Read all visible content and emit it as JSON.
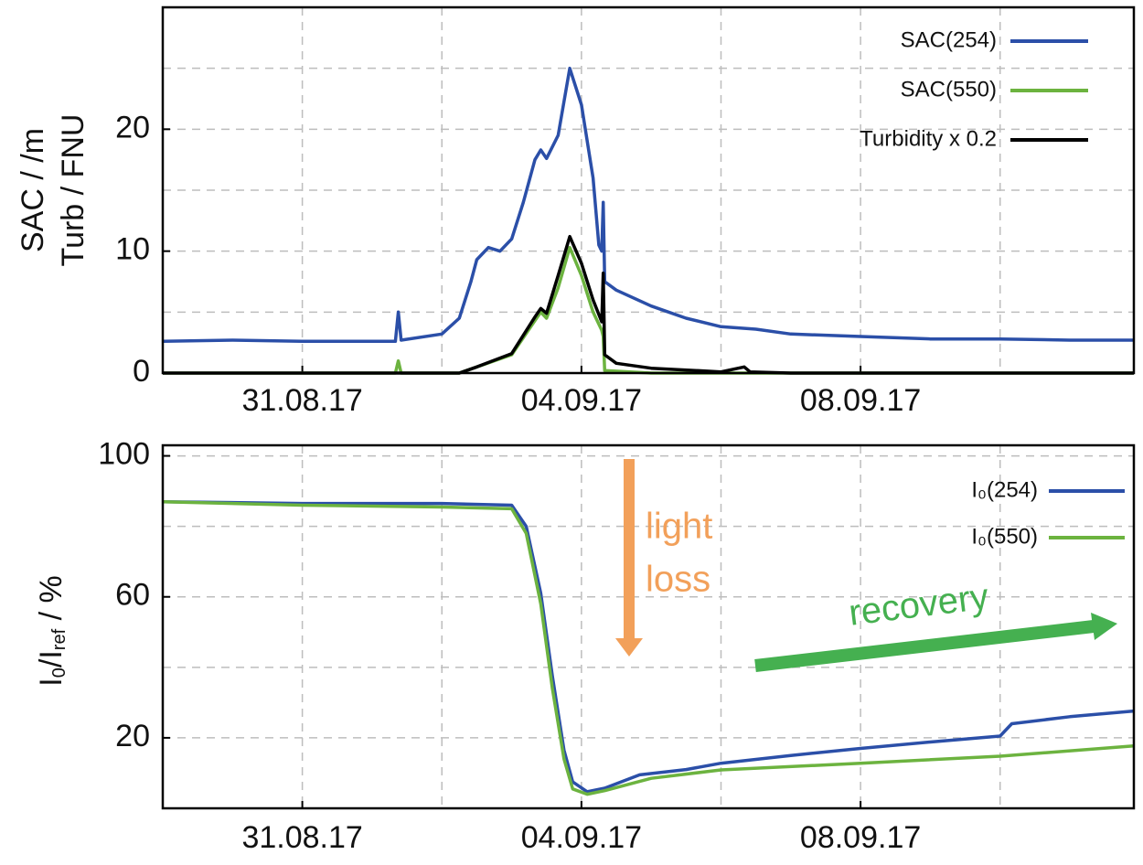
{
  "chart_data": [
    {
      "type": "line",
      "ylabel": [
        "SAC / /m",
        "Turb / FNU"
      ],
      "xlim": [
        "29.08.17 00:00",
        "11.09.17 22:00"
      ],
      "xticks": [
        "31.08.17",
        "04.09.17",
        "08.09.17"
      ],
      "minor_xticks": [
        "02.09.17",
        "06.09.17",
        "10.09.17"
      ],
      "ylim": [
        0,
        30
      ],
      "yticks": [
        0,
        10,
        20
      ],
      "minor_yticks": [
        5,
        15,
        25
      ],
      "grid": true,
      "legend": "upper right",
      "series": [
        {
          "name": "SAC(254)",
          "color": "#2b4fa8",
          "x": [
            "29.08.17 00:00",
            "30.08.17 00:00",
            "31.08.17 00:00",
            "01.09.17 00:00",
            "01.09.17 08:00",
            "01.09.17 09:00",
            "01.09.17 10:00",
            "02.09.17 00:00",
            "02.09.17 06:00",
            "02.09.17 10:00",
            "02.09.17 12:00",
            "02.09.17 16:00",
            "02.09.17 20:00",
            "03.09.17 00:00",
            "03.09.17 04:00",
            "03.09.17 08:00",
            "03.09.17 10:00",
            "03.09.17 12:00",
            "03.09.17 16:00",
            "03.09.17 20:00",
            "04.09.17 00:00",
            "04.09.17 04:00",
            "04.09.17 06:00",
            "04.09.17 07:00",
            "04.09.17 07:30",
            "04.09.17 08:00",
            "04.09.17 12:00",
            "05.09.17 00:00",
            "05.09.17 12:00",
            "06.09.17 00:00",
            "06.09.17 12:00",
            "07.09.17 00:00",
            "08.09.17 00:00",
            "09.09.17 00:00",
            "10.09.17 00:00",
            "11.09.17 00:00",
            "11.09.17 22:00"
          ],
          "values": [
            2.6,
            2.7,
            2.6,
            2.6,
            2.6,
            5.0,
            2.7,
            3.2,
            4.5,
            7.5,
            9.3,
            10.3,
            10.0,
            11.0,
            14.0,
            17.5,
            18.3,
            17.6,
            19.5,
            25.0,
            22.0,
            16.0,
            10.5,
            10.0,
            14.0,
            7.5,
            6.8,
            5.5,
            4.5,
            3.8,
            3.6,
            3.2,
            3.0,
            2.8,
            2.8,
            2.7,
            2.7
          ]
        },
        {
          "name": "SAC(550)",
          "color": "#6cb33f",
          "x": [
            "29.08.17 00:00",
            "01.09.17 08:00",
            "01.09.17 09:00",
            "01.09.17 10:00",
            "02.09.17 06:00",
            "02.09.17 12:00",
            "03.09.17 00:00",
            "03.09.17 08:00",
            "03.09.17 10:00",
            "03.09.17 12:00",
            "03.09.17 16:00",
            "03.09.17 20:00",
            "04.09.17 00:00",
            "04.09.17 04:00",
            "04.09.17 07:00",
            "04.09.17 07:30",
            "04.09.17 08:00",
            "05.09.17 00:00",
            "11.09.17 22:00"
          ],
          "values": [
            0,
            0,
            1.0,
            0,
            0,
            0.5,
            1.5,
            4.3,
            5.0,
            4.5,
            7.0,
            10.3,
            8.0,
            5.0,
            3.5,
            3.0,
            0.2,
            0,
            0
          ]
        },
        {
          "name": "Turbidity x 0.2",
          "color": "#000000",
          "x": [
            "29.08.17 00:00",
            "02.09.17 06:00",
            "02.09.17 12:00",
            "03.09.17 00:00",
            "03.09.17 08:00",
            "03.09.17 10:00",
            "03.09.17 12:00",
            "03.09.17 16:00",
            "03.09.17 20:00",
            "04.09.17 00:00",
            "04.09.17 04:00",
            "04.09.17 07:00",
            "04.09.17 07:30",
            "04.09.17 08:00",
            "04.09.17 12:00",
            "05.09.17 00:00",
            "06.09.17 00:00",
            "06.09.17 08:00",
            "06.09.17 10:00",
            "07.09.17 00:00",
            "11.09.17 22:00"
          ],
          "values": [
            0,
            0,
            0.5,
            1.6,
            4.6,
            5.3,
            4.9,
            8.0,
            11.2,
            9.0,
            6.0,
            4.2,
            8.2,
            1.5,
            0.8,
            0.4,
            0.1,
            0.5,
            0.1,
            0,
            0
          ]
        }
      ]
    },
    {
      "type": "line",
      "ylabel": [
        {
          "text": "I"
        },
        {
          "text": "0",
          "sub": true
        },
        {
          "text": "/I"
        },
        {
          "text": "ref",
          "sub": true
        },
        {
          "text": " / %"
        }
      ],
      "xlim": [
        "29.08.17 00:00",
        "11.09.17 22:00"
      ],
      "xticks": [
        "31.08.17",
        "04.09.17",
        "08.09.17"
      ],
      "minor_xticks": [
        "02.09.17",
        "06.09.17",
        "10.09.17"
      ],
      "ylim": [
        0,
        103
      ],
      "yticks": [
        20,
        60,
        100
      ],
      "minor_yticks": [
        40,
        80
      ],
      "grid": true,
      "legend": "upper right",
      "annotations": [
        "light",
        "loss",
        "recovery"
      ],
      "series": [
        {
          "name": "I₀(254)",
          "color": "#2b4fa8",
          "x": [
            "29.08.17 00:00",
            "31.08.17 00:00",
            "02.09.17 00:00",
            "03.09.17 00:00",
            "03.09.17 05:00",
            "03.09.17 10:00",
            "03.09.17 14:00",
            "03.09.17 18:00",
            "03.09.17 21:00",
            "04.09.17 02:00",
            "04.09.17 08:00",
            "04.09.17 20:00",
            "05.09.17 12:00",
            "06.09.17 00:00",
            "07.09.17 00:00",
            "08.09.17 00:00",
            "09.09.17 00:00",
            "10.09.17 00:00",
            "10.09.17 04:00",
            "11.09.17 00:00",
            "11.09.17 22:00"
          ],
          "values": [
            87,
            86.5,
            86.5,
            86,
            80,
            61,
            37.5,
            16.5,
            7.5,
            4.7,
            5.7,
            9.5,
            11,
            12.8,
            15,
            17,
            18.8,
            20.5,
            24,
            26,
            27.6
          ]
        },
        {
          "name": "I₀(550)",
          "color": "#6cb33f",
          "x": [
            "29.08.17 00:00",
            "31.08.17 00:00",
            "02.09.17 00:00",
            "03.09.17 00:00",
            "03.09.17 05:00",
            "03.09.17 10:00",
            "03.09.17 14:00",
            "03.09.17 18:00",
            "03.09.17 21:00",
            "04.09.17 02:00",
            "04.09.17 08:00",
            "05.09.17 00:00",
            "06.09.17 00:00",
            "08.09.17 00:00",
            "10.09.17 00:00",
            "11.09.17 22:00"
          ],
          "values": [
            87,
            86,
            85.5,
            85,
            78,
            58,
            34,
            14,
            5.5,
            4,
            5,
            8.5,
            10.9,
            12.8,
            14.8,
            17.7
          ]
        }
      ]
    }
  ]
}
